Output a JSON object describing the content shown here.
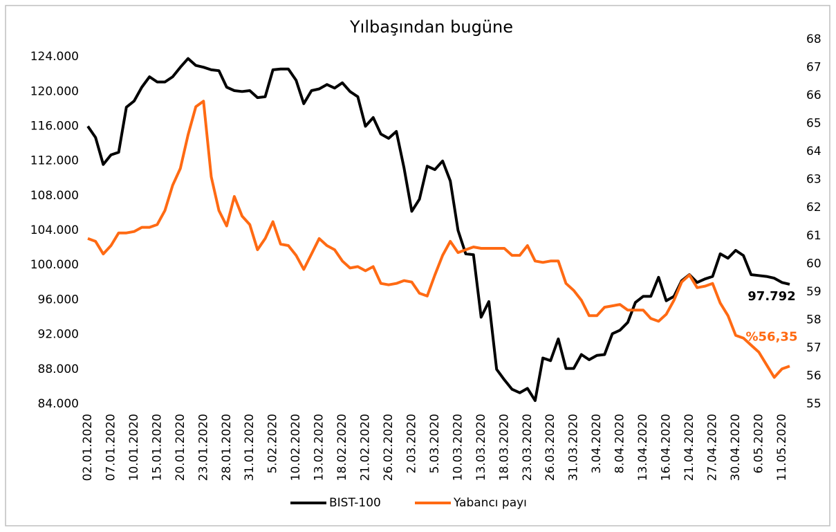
{
  "chart_data": {
    "type": "line",
    "title": "Yılbaşından bugüne",
    "categories": [
      "02.01.2020",
      null,
      null,
      "07.01.2020",
      null,
      null,
      "10.01.2020",
      null,
      null,
      "15.01.2020",
      null,
      null,
      "20.01.2020",
      null,
      null,
      "23.01.2020",
      null,
      null,
      "28.01.2020",
      null,
      null,
      "31.01.2020",
      null,
      null,
      "5.02.2020",
      null,
      null,
      "10.02.2020",
      null,
      null,
      "13.02.2020",
      null,
      null,
      "18.02.2020",
      null,
      null,
      "21.02.2020",
      null,
      null,
      "26.02.2020",
      null,
      null,
      "2.03.2020",
      null,
      null,
      "5.03.2020",
      null,
      null,
      "10.03.2020",
      null,
      null,
      "13.03.2020",
      null,
      null,
      "18.03.2020",
      null,
      null,
      "23.03.2020",
      null,
      null,
      "26.03.2020",
      null,
      null,
      "31.03.2020",
      null,
      null,
      "3.04.2020",
      null,
      null,
      "8.04.2020",
      null,
      null,
      "13.04.2020",
      null,
      null,
      "16.04.2020",
      null,
      null,
      "21.04.2020",
      null,
      null,
      "27.04.2020",
      null,
      null,
      "30.04.2020",
      null,
      null,
      "6.05.2020",
      null,
      null,
      "11.05.2020",
      null
    ],
    "series": [
      {
        "name": "BIST-100",
        "color": "#000000",
        "values": [
          116000,
          114700,
          111600,
          112700,
          113000,
          118200,
          118900,
          120500,
          121700,
          121100,
          121100,
          121700,
          122800,
          123800,
          123000,
          122800,
          122500,
          122400,
          120500,
          120100,
          120000,
          120100,
          119300,
          119400,
          122500,
          122600,
          122600,
          121300,
          118600,
          120100,
          120300,
          120800,
          120400,
          121000,
          120000,
          119400,
          116000,
          117000,
          115100,
          114600,
          115400,
          111200,
          106200,
          107600,
          111400,
          111000,
          112000,
          109700,
          104000,
          101300,
          101200,
          94000,
          95800,
          88000,
          86800,
          85700,
          85300,
          85800,
          84400,
          89300,
          89000,
          91500,
          88100,
          88100,
          89700,
          89100,
          89600,
          89700,
          92100,
          92500,
          93400,
          95700,
          96400,
          96400,
          98600,
          95900,
          96400,
          98200,
          98900,
          98000,
          98400,
          98700,
          101300,
          100800,
          101700,
          101100,
          98900,
          98800,
          98700,
          98500,
          98000,
          97792
        ],
        "value_labels": [
          null,
          null,
          null,
          null,
          null,
          null,
          null,
          null,
          null,
          null,
          null,
          null,
          null,
          null,
          null,
          null,
          null,
          null,
          null,
          null,
          null,
          null,
          null,
          null,
          null,
          null,
          null,
          null,
          null,
          null,
          null,
          null,
          null,
          null,
          null,
          null,
          null,
          null,
          null,
          null,
          null,
          null,
          null,
          null,
          null,
          null,
          null,
          null,
          null,
          null,
          null,
          null,
          null,
          null,
          null,
          null,
          null,
          null,
          null,
          null,
          null,
          null,
          null,
          null,
          null,
          null,
          null,
          null,
          null,
          null,
          null,
          null,
          null,
          null,
          null,
          null,
          null,
          null,
          null,
          null,
          null,
          null,
          null,
          null,
          null,
          null,
          null,
          null,
          null,
          null,
          null,
          "97.792"
        ]
      },
      {
        "name": "Yabancı payı",
        "color": "#ff6a13",
        "axis": "y2",
        "values": [
          60.9,
          60.8,
          60.35,
          60.65,
          61.1,
          61.1,
          61.15,
          61.3,
          61.3,
          61.4,
          61.9,
          62.8,
          63.4,
          64.6,
          65.6,
          65.8,
          63.1,
          61.9,
          61.35,
          62.4,
          61.7,
          61.4,
          60.5,
          60.9,
          61.5,
          60.7,
          60.65,
          60.3,
          59.8,
          60.35,
          60.9,
          60.65,
          60.5,
          60.1,
          59.85,
          59.9,
          59.75,
          59.9,
          59.3,
          59.25,
          59.3,
          59.4,
          59.35,
          58.95,
          58.85,
          59.6,
          60.3,
          60.8,
          60.4,
          60.5,
          60.6,
          60.55,
          60.55,
          60.55,
          60.55,
          60.3,
          60.3,
          60.65,
          60.1,
          60.05,
          60.1,
          60.1,
          59.3,
          59.05,
          58.7,
          58.15,
          58.15,
          58.45,
          58.5,
          58.55,
          58.35,
          58.35,
          58.35,
          58.05,
          57.95,
          58.2,
          58.7,
          59.35,
          59.6,
          59.15,
          59.2,
          59.3,
          58.6,
          58.15,
          57.45,
          57.35,
          57.1,
          56.85,
          56.4,
          55.95,
          56.25,
          56.35
        ],
        "value_labels": [
          null,
          null,
          null,
          null,
          null,
          null,
          null,
          null,
          null,
          null,
          null,
          null,
          null,
          null,
          null,
          null,
          null,
          null,
          null,
          null,
          null,
          null,
          null,
          null,
          null,
          null,
          null,
          null,
          null,
          null,
          null,
          null,
          null,
          null,
          null,
          null,
          null,
          null,
          null,
          null,
          null,
          null,
          null,
          null,
          null,
          null,
          null,
          null,
          null,
          null,
          null,
          null,
          null,
          null,
          null,
          null,
          null,
          null,
          null,
          null,
          null,
          null,
          null,
          null,
          null,
          null,
          null,
          null,
          null,
          null,
          null,
          null,
          null,
          null,
          null,
          null,
          null,
          null,
          null,
          null,
          null,
          null,
          null,
          null,
          null,
          null,
          null,
          null,
          null,
          null,
          null,
          "%56,35"
        ]
      }
    ],
    "ylim": [
      84000,
      126000
    ],
    "yticks": [
      {
        "value": 84000,
        "label": "84.000"
      },
      {
        "value": 88000,
        "label": "88.000"
      },
      {
        "value": 92000,
        "label": "92.000"
      },
      {
        "value": 96000,
        "label": "96.000"
      },
      {
        "value": 100000,
        "label": "100.000"
      },
      {
        "value": 104000,
        "label": "104.000"
      },
      {
        "value": 108000,
        "label": "108.000"
      },
      {
        "value": 112000,
        "label": "112.000"
      },
      {
        "value": 116000,
        "label": "116.000"
      },
      {
        "value": 120000,
        "label": "120.000"
      },
      {
        "value": 124000,
        "label": "124.000"
      }
    ],
    "y2lim": [
      55,
      68
    ],
    "y2ticks": [
      55,
      56,
      57,
      58,
      59,
      60,
      61,
      62,
      63,
      64,
      65,
      66,
      67,
      68
    ],
    "grid": false,
    "legend": "bottom"
  }
}
